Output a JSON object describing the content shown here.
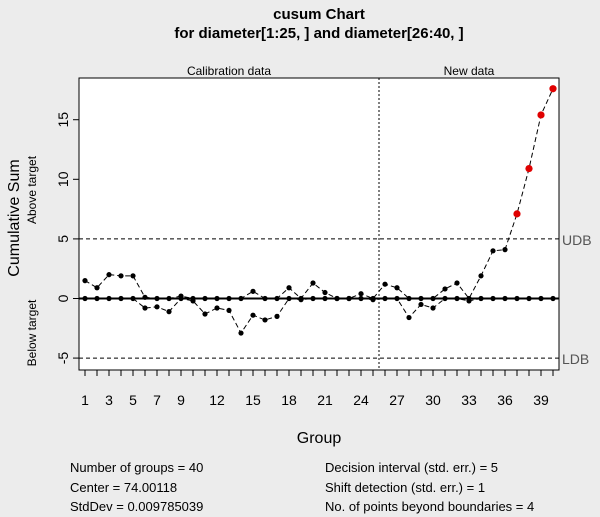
{
  "chart_data": {
    "type": "line",
    "title": "cusum Chart",
    "subtitle": "for diameter[1:25, ] and diameter[26:40, ]",
    "xlabel": "Group",
    "ylabel": "Cumulative Sum",
    "ylabel_upper": "Above target",
    "ylabel_lower": "Below target",
    "section_labels": [
      "Calibration data",
      "New data"
    ],
    "x": [
      1,
      2,
      3,
      4,
      5,
      6,
      7,
      8,
      9,
      10,
      11,
      12,
      13,
      14,
      15,
      16,
      17,
      18,
      19,
      20,
      21,
      22,
      23,
      24,
      25,
      26,
      27,
      28,
      29,
      30,
      31,
      32,
      33,
      34,
      35,
      36,
      37,
      38,
      39,
      40
    ],
    "x_tick_labels": [
      "1",
      "3",
      "5",
      "7",
      "9",
      "12",
      "15",
      "18",
      "21",
      "24",
      "27",
      "30",
      "33",
      "36",
      "39"
    ],
    "xlim": [
      0.5,
      40.5
    ],
    "ylim": [
      -6,
      18.5
    ],
    "y_ticks": [
      -5,
      0,
      5,
      10,
      15
    ],
    "y_tick_labels": [
      "-5",
      "0",
      "5",
      "10",
      "15"
    ],
    "boundaries": [
      {
        "label": "UDB",
        "value": 5
      },
      {
        "label": "LDB",
        "value": -5
      }
    ],
    "calibration_end": 25,
    "beyond_color": "#e00000",
    "point_color": "#000000",
    "series": [
      {
        "values": [
          1.5,
          0.9,
          2.0,
          1.9,
          1.9,
          0.1,
          0,
          0,
          0.2,
          0,
          0,
          0,
          0,
          0,
          0.6,
          0,
          0,
          0.9,
          0,
          1.3,
          0.5,
          0,
          0,
          0.4,
          0,
          1.2,
          0.9,
          0,
          0,
          0,
          0.8,
          1.3,
          0,
          1.9,
          4.0,
          4.1,
          7.1,
          10.9,
          15.4,
          17.6
        ],
        "beyond": [
          37,
          38,
          39,
          40
        ]
      },
      {
        "values": [
          0,
          0,
          0,
          0,
          0,
          -0.8,
          -0.7,
          -1.1,
          0,
          -0.2,
          -1.3,
          -0.8,
          -1.0,
          -2.9,
          -1.4,
          -1.8,
          -1.5,
          0,
          -0.1,
          0,
          0,
          0,
          0,
          0,
          -0.1,
          0,
          0,
          -1.6,
          -0.5,
          -0.8,
          0,
          0,
          -0.2,
          0,
          0,
          0,
          0,
          0,
          0,
          0
        ],
        "beyond": []
      }
    ]
  },
  "stats": {
    "left": [
      "Number of groups = 40",
      "Center = 74.00118",
      "StdDev = 0.009785039"
    ],
    "right": [
      "Decision interval (std. err.) = 5",
      "Shift detection (std. err.) = 1",
      "No. of points beyond boundaries = 4"
    ]
  }
}
